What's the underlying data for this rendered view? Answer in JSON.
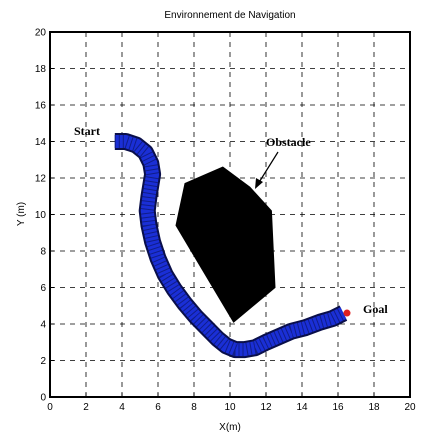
{
  "chart_data": {
    "type": "line",
    "title": "Environnement de Navigation",
    "xlabel": "X(m)",
    "ylabel": "Y (m)",
    "xlim": [
      0,
      20
    ],
    "ylim": [
      0,
      20
    ],
    "xticks": [
      "0",
      "2",
      "4",
      "6",
      "8",
      "10",
      "12",
      "14",
      "16",
      "18",
      "20"
    ],
    "yticks": [
      "0",
      "2",
      "4",
      "6",
      "8",
      "10",
      "12",
      "14",
      "16",
      "18",
      "20"
    ],
    "grid": true,
    "series": [
      {
        "kind": "trajectory",
        "color": "#1a2fd6",
        "x": [
          3.6,
          4.2,
          4.8,
          5.3,
          5.6,
          5.7,
          5.6,
          5.5,
          5.4,
          5.5,
          5.7,
          6.0,
          6.4,
          6.9,
          7.5,
          8.1,
          8.7,
          9.3,
          9.8,
          10.3,
          10.8,
          11.4,
          12.0,
          12.7,
          13.4,
          14.2,
          15.0,
          15.7,
          16.3
        ],
        "y": [
          14.0,
          14.0,
          13.8,
          13.4,
          12.8,
          12.2,
          11.6,
          11.0,
          10.2,
          9.4,
          8.5,
          7.6,
          6.7,
          5.9,
          5.1,
          4.4,
          3.8,
          3.2,
          2.8,
          2.6,
          2.6,
          2.7,
          3.0,
          3.3,
          3.6,
          3.8,
          4.1,
          4.3,
          4.6
        ]
      }
    ],
    "obstacle": {
      "color": "#000000",
      "x": [
        7.0,
        7.5,
        9.6,
        11.1,
        12.3,
        12.5,
        10.2,
        7.0
      ],
      "y": [
        9.4,
        11.7,
        12.6,
        11.5,
        10.2,
        6.0,
        4.1,
        9.4
      ]
    },
    "start_point": {
      "x": 3.6,
      "y": 14.0
    },
    "goal_point": {
      "x": 16.5,
      "y": 4.6,
      "color": "#e02020"
    },
    "annotations": {
      "start": "Start",
      "obstacle": "Obstacle",
      "goal": "Goal"
    }
  }
}
